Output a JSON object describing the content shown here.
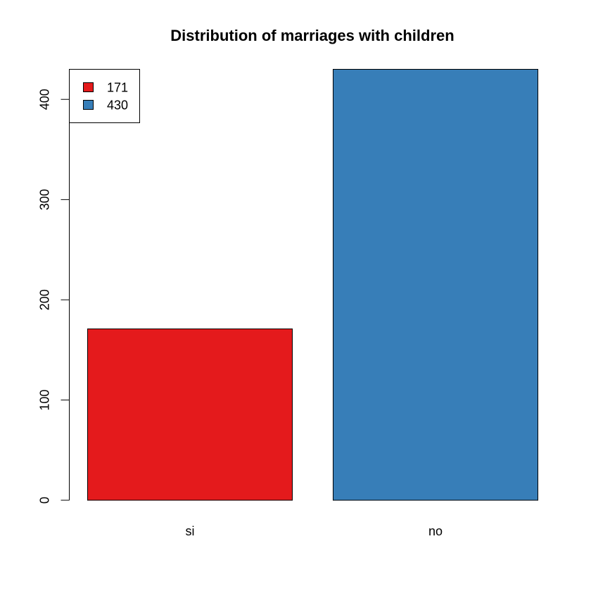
{
  "chart_data": {
    "type": "bar",
    "title": "Distribution of marriages with children",
    "xlabel": "",
    "ylabel": "",
    "categories": [
      "si",
      "no"
    ],
    "values": [
      171,
      430
    ],
    "colors": [
      "#E41A1C",
      "#377EB8"
    ],
    "ylim": [
      0,
      430
    ],
    "yticks": [
      0,
      100,
      200,
      300,
      400
    ],
    "ytick_labels": [
      "0",
      "100",
      "200",
      "300",
      "400"
    ],
    "grid": false,
    "legend": {
      "position": "top-left",
      "entries": [
        {
          "label": "171",
          "color": "#E41A1C"
        },
        {
          "label": "430",
          "color": "#377EB8"
        }
      ]
    }
  }
}
